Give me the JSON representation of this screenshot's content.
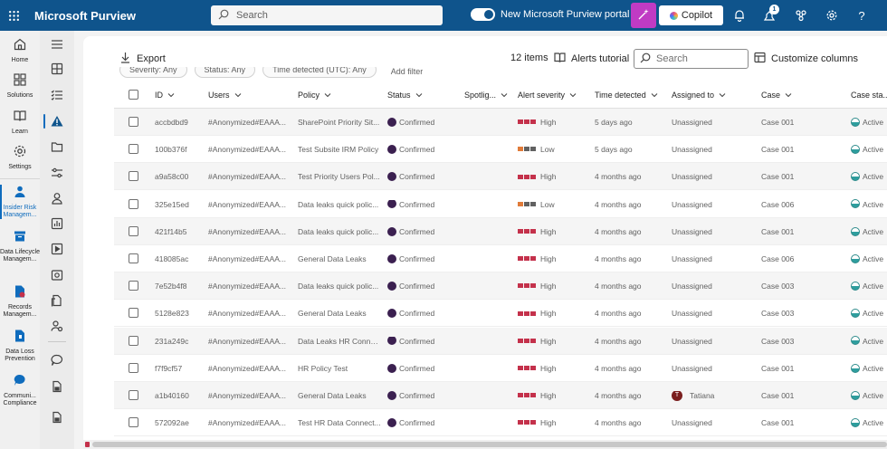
{
  "header": {
    "brand": "Microsoft Purview",
    "search_placeholder": "Search",
    "toggle_label": "New Microsoft Purview portal",
    "copilot_label": "Copilot",
    "notification_count": "1"
  },
  "leftnav": {
    "items": [
      {
        "label": "Home",
        "icon": "home-icon"
      },
      {
        "label": "Solutions",
        "icon": "solutions-icon"
      },
      {
        "label": "Learn",
        "icon": "learn-icon"
      },
      {
        "label": "Settings",
        "icon": "settings-icon"
      },
      {
        "label": "Insider Risk Managem...",
        "icon": "insider-risk-icon",
        "active": true
      },
      {
        "label": "Data Lifecycle Managem...",
        "icon": "data-lifecycle-icon"
      },
      {
        "label": "Records Managem...",
        "icon": "records-icon"
      },
      {
        "label": "Data Loss Prevention",
        "icon": "dlp-icon"
      },
      {
        "label": "Communi... Compliance",
        "icon": "communication-icon"
      }
    ]
  },
  "toolbar": {
    "export_label": "Export",
    "items_count": "12 items",
    "tutorial_label": "Alerts tutorial",
    "search_placeholder": "Search",
    "customize_label": "Customize columns",
    "filters": [
      "Severity: Any",
      "Status: Any",
      "Time detected (UTC): Any"
    ],
    "add_filter": "Add filter"
  },
  "colors": {
    "high": "#c4314b",
    "low_orange": "#e07b39",
    "low_grey": "#616161",
    "status_confirmed": "#3b2050",
    "topbar": "#0f548c"
  },
  "table": {
    "columns": [
      "ID",
      "Users",
      "Policy",
      "Status",
      "Spotlig...",
      "Alert severity",
      "Time detected",
      "Assigned to",
      "Case",
      "Case sta..."
    ],
    "rows": [
      {
        "id": "accbdbd9",
        "user": "#Anonymized#EAAA...",
        "policy": "SharePoint Priority Sit...",
        "status": "Confirmed",
        "severity": "High",
        "time": "5 days ago",
        "assigned": "Unassigned",
        "case": "Case 001",
        "case_status": "Active"
      },
      {
        "id": "100b376f",
        "user": "#Anonymized#EAAA...",
        "policy": "Test Subsite IRM Policy",
        "status": "Confirmed",
        "severity": "Low",
        "time": "5 days ago",
        "assigned": "Unassigned",
        "case": "Case 001",
        "case_status": "Active"
      },
      {
        "id": "a9a58c00",
        "user": "#Anonymized#EAAA...",
        "policy": "Test Priority Users Pol...",
        "status": "Confirmed",
        "severity": "High",
        "time": "4 months ago",
        "assigned": "Unassigned",
        "case": "Case 001",
        "case_status": "Active"
      },
      {
        "id": "325e15ed",
        "user": "#Anonymized#EAAA...",
        "policy": "Data leaks quick polic...",
        "status": "Confirmed",
        "severity": "Low",
        "time": "4 months ago",
        "assigned": "Unassigned",
        "case": "Case 006",
        "case_status": "Active"
      },
      {
        "id": "421f14b5",
        "user": "#Anonymized#EAAA...",
        "policy": "Data leaks quick polic...",
        "status": "Confirmed",
        "severity": "High",
        "time": "4 months ago",
        "assigned": "Unassigned",
        "case": "Case 001",
        "case_status": "Active"
      },
      {
        "id": "418085ac",
        "user": "#Anonymized#EAAA...",
        "policy": "General Data Leaks",
        "status": "Confirmed",
        "severity": "High",
        "time": "4 months ago",
        "assigned": "Unassigned",
        "case": "Case 006",
        "case_status": "Active"
      },
      {
        "id": "7e52b4f8",
        "user": "#Anonymized#EAAA...",
        "policy": "Data leaks quick polic...",
        "status": "Confirmed",
        "severity": "High",
        "time": "4 months ago",
        "assigned": "Unassigned",
        "case": "Case 003",
        "case_status": "Active"
      },
      {
        "id": "5128e823",
        "user": "#Anonymized#EAAA...",
        "policy": "General Data Leaks",
        "status": "Confirmed",
        "severity": "High",
        "time": "4 months ago",
        "assigned": "Unassigned",
        "case": "Case 003",
        "case_status": "Active"
      },
      {
        "id": "231a249c",
        "user": "#Anonymized#EAAA...",
        "policy": "Data Leaks HR Conne...",
        "status": "Confirmed",
        "severity": "High",
        "time": "4 months ago",
        "assigned": "Unassigned",
        "case": "Case 003",
        "case_status": "Active"
      },
      {
        "id": "f7f9cf57",
        "user": "#Anonymized#EAAA...",
        "policy": "HR Policy Test",
        "status": "Confirmed",
        "severity": "High",
        "time": "4 months ago",
        "assigned": "Unassigned",
        "case": "Case 001",
        "case_status": "Active"
      },
      {
        "id": "a1b40160",
        "user": "#Anonymized#EAAA...",
        "policy": "General Data Leaks",
        "status": "Confirmed",
        "severity": "High",
        "time": "4 months ago",
        "assigned": "Tatiana",
        "assigned_initial": "T",
        "case": "Case 001",
        "case_status": "Active"
      },
      {
        "id": "572092ae",
        "user": "#Anonymized#EAAA...",
        "policy": "Test HR Data Connect...",
        "status": "Confirmed",
        "severity": "High",
        "time": "4 months ago",
        "assigned": "Unassigned",
        "case": "Case 001",
        "case_status": "Active"
      }
    ]
  }
}
